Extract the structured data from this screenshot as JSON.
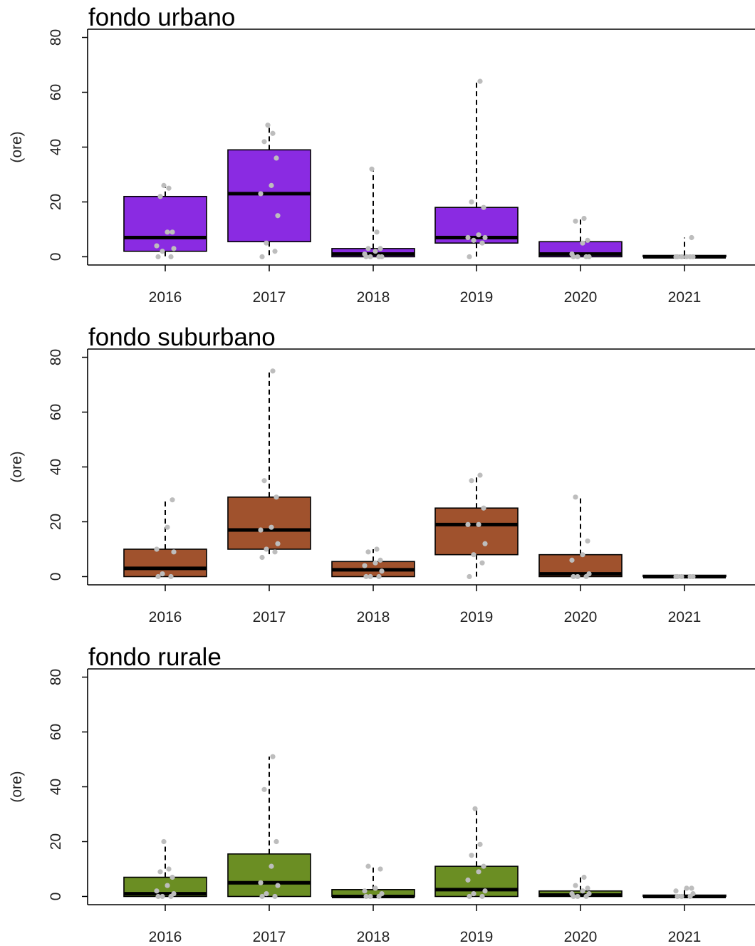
{
  "chart_data": [
    {
      "type": "boxplot",
      "title": "fondo urbano",
      "ylabel": "(ore)",
      "xlabel": "",
      "ylim": [
        -3,
        83
      ],
      "yticks": [
        "0",
        "20",
        "40",
        "60",
        "80"
      ],
      "categories": [
        "2016",
        "2017",
        "2018",
        "2019",
        "2020",
        "2021"
      ],
      "color": "#8a2be2",
      "boxes": [
        {
          "category": "2016",
          "q1": 2,
          "median": 7,
          "q3": 22,
          "whisker_low": 0,
          "whisker_high": 26
        },
        {
          "category": "2017",
          "q1": 5.5,
          "median": 23,
          "q3": 39,
          "whisker_low": 0,
          "whisker_high": 48
        },
        {
          "category": "2018",
          "q1": 0,
          "median": 1,
          "q3": 3,
          "whisker_low": 0,
          "whisker_high": 32
        },
        {
          "category": "2019",
          "q1": 5,
          "median": 7,
          "q3": 18,
          "whisker_low": 0,
          "whisker_high": 64
        },
        {
          "category": "2020",
          "q1": 0,
          "median": 1,
          "q3": 5.5,
          "whisker_low": 0,
          "whisker_high": 14
        },
        {
          "category": "2021",
          "q1": 0,
          "median": 0,
          "q3": 0.5,
          "whisker_low": 0,
          "whisker_high": 7
        }
      ],
      "points": [
        {
          "category": "2016",
          "values": [
            0,
            0,
            2,
            3,
            4,
            9,
            9,
            22,
            25,
            26
          ]
        },
        {
          "category": "2017",
          "values": [
            0,
            2,
            5,
            15,
            23,
            26,
            36,
            42,
            45,
            48
          ]
        },
        {
          "category": "2018",
          "values": [
            0,
            0,
            0,
            0,
            1,
            2,
            3,
            3,
            9,
            32
          ]
        },
        {
          "category": "2019",
          "values": [
            0,
            5,
            6,
            7,
            7,
            8,
            18,
            20,
            64
          ]
        },
        {
          "category": "2020",
          "values": [
            0,
            0,
            0,
            0,
            1,
            5,
            6,
            13,
            14
          ]
        },
        {
          "category": "2021",
          "values": [
            0,
            0,
            0,
            0,
            0,
            0,
            7
          ]
        }
      ]
    },
    {
      "type": "boxplot",
      "title": "fondo suburbano",
      "ylabel": "(ore)",
      "xlabel": "",
      "ylim": [
        -3,
        83
      ],
      "yticks": [
        "0",
        "20",
        "40",
        "60",
        "80"
      ],
      "categories": [
        "2016",
        "2017",
        "2018",
        "2019",
        "2020",
        "2021"
      ],
      "color": "#a0522d",
      "boxes": [
        {
          "category": "2016",
          "q1": 0,
          "median": 3,
          "q3": 10,
          "whisker_low": 0,
          "whisker_high": 28
        },
        {
          "category": "2017",
          "q1": 10,
          "median": 17,
          "q3": 29,
          "whisker_low": 7,
          "whisker_high": 75
        },
        {
          "category": "2018",
          "q1": 0,
          "median": 2.5,
          "q3": 5.5,
          "whisker_low": 0,
          "whisker_high": 10
        },
        {
          "category": "2019",
          "q1": 8,
          "median": 19,
          "q3": 25,
          "whisker_low": 0,
          "whisker_high": 37
        },
        {
          "category": "2020",
          "q1": 0,
          "median": 1,
          "q3": 8,
          "whisker_low": 0,
          "whisker_high": 29
        },
        {
          "category": "2021",
          "q1": 0,
          "median": 0,
          "q3": 0.5,
          "whisker_low": 0,
          "whisker_high": 0.5
        }
      ],
      "points": [
        {
          "category": "2016",
          "values": [
            0,
            0,
            1,
            9,
            10,
            18,
            28
          ]
        },
        {
          "category": "2017",
          "values": [
            7,
            9,
            10,
            12,
            17,
            18,
            29,
            35,
            75
          ]
        },
        {
          "category": "2018",
          "values": [
            0,
            0,
            0,
            2,
            4,
            5,
            6,
            9,
            10
          ]
        },
        {
          "category": "2019",
          "values": [
            0,
            5,
            8,
            12,
            19,
            19,
            25,
            35,
            37
          ]
        },
        {
          "category": "2020",
          "values": [
            0,
            0,
            0,
            1,
            6,
            8,
            13,
            29
          ]
        },
        {
          "category": "2021",
          "values": [
            0,
            0,
            0,
            0,
            0
          ]
        }
      ]
    },
    {
      "type": "boxplot",
      "title": "fondo rurale",
      "ylabel": "(ore)",
      "xlabel": "",
      "ylim": [
        -3,
        83
      ],
      "yticks": [
        "0",
        "20",
        "40",
        "60",
        "80"
      ],
      "categories": [
        "2016",
        "2017",
        "2018",
        "2019",
        "2020",
        "2021"
      ],
      "color": "#6b8e23",
      "boxes": [
        {
          "category": "2016",
          "q1": 0,
          "median": 1,
          "q3": 7,
          "whisker_low": 0,
          "whisker_high": 20
        },
        {
          "category": "2017",
          "q1": 0,
          "median": 5,
          "q3": 15.5,
          "whisker_low": 0,
          "whisker_high": 51
        },
        {
          "category": "2018",
          "q1": 0,
          "median": 0,
          "q3": 2.5,
          "whisker_low": 0,
          "whisker_high": 11
        },
        {
          "category": "2019",
          "q1": 0,
          "median": 2.5,
          "q3": 11,
          "whisker_low": 0,
          "whisker_high": 32
        },
        {
          "category": "2020",
          "q1": 0,
          "median": 0.5,
          "q3": 2,
          "whisker_low": 0,
          "whisker_high": 7
        },
        {
          "category": "2021",
          "q1": 0,
          "median": 0,
          "q3": 0.5,
          "whisker_low": 0,
          "whisker_high": 3
        }
      ],
      "points": [
        {
          "category": "2016",
          "values": [
            0,
            0,
            0,
            1,
            2,
            4,
            7,
            9,
            10,
            20
          ]
        },
        {
          "category": "2017",
          "values": [
            0,
            0,
            1,
            4,
            5,
            11,
            20,
            39,
            51
          ]
        },
        {
          "category": "2018",
          "values": [
            0,
            0,
            0,
            1,
            2,
            3,
            10,
            11
          ]
        },
        {
          "category": "2019",
          "values": [
            0,
            0,
            1,
            2,
            6,
            9,
            11,
            15,
            19,
            32
          ]
        },
        {
          "category": "2020",
          "values": [
            0,
            0,
            0,
            1,
            1,
            2,
            3,
            4,
            7
          ]
        },
        {
          "category": "2021",
          "values": [
            0,
            0,
            0,
            1,
            2,
            3,
            3
          ]
        }
      ]
    }
  ]
}
